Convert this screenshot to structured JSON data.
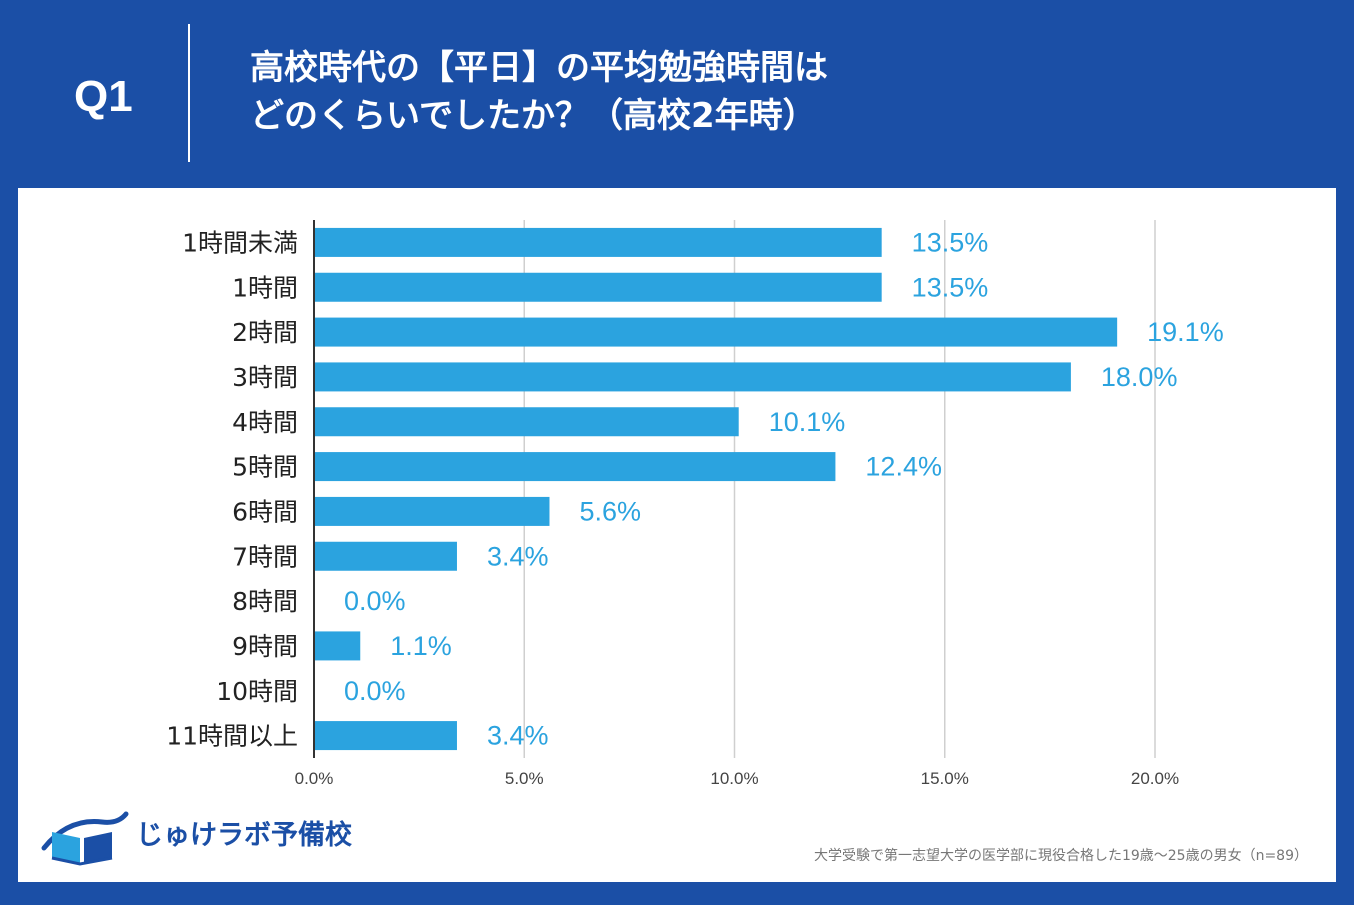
{
  "header": {
    "q_number": "Q1",
    "title_line1": "高校時代の【平日】の平均勉強時間は",
    "title_line2": "どのくらいでしたか？（高校2年時）"
  },
  "colors": {
    "background": "#1b4fa6",
    "bar": "#2ba3df",
    "label": "#2ba3df",
    "grid": "#cfcfcf",
    "axis": "#333333"
  },
  "chart_data": {
    "type": "bar",
    "orientation": "horizontal",
    "categories": [
      "1時間未満",
      "1時間",
      "2時間",
      "3時間",
      "4時間",
      "5時間",
      "6時間",
      "7時間",
      "8時間",
      "9時間",
      "10時間",
      "11時間以上"
    ],
    "values": [
      13.5,
      13.5,
      19.1,
      18.0,
      10.1,
      12.4,
      5.6,
      3.4,
      0.0,
      1.1,
      0.0,
      3.4
    ],
    "value_labels": [
      "13.5%",
      "13.5%",
      "19.1%",
      "18.0%",
      "10.1%",
      "12.4%",
      "5.6%",
      "3.4%",
      "0.0%",
      "1.1%",
      "0.0%",
      "3.4%"
    ],
    "xlim": [
      0,
      20
    ],
    "xticks": [
      0,
      5,
      10,
      15,
      20
    ],
    "xtick_labels": [
      "0.0%",
      "5.0%",
      "10.0%",
      "15.0%",
      "20.0%"
    ],
    "grid": true,
    "title": "",
    "xlabel": "",
    "ylabel": ""
  },
  "logo": {
    "name": "じゅけラボ予備校"
  },
  "footnote": "大学受験で第一志望大学の医学部に現役合格した19歳～25歳の男女（n=89）"
}
